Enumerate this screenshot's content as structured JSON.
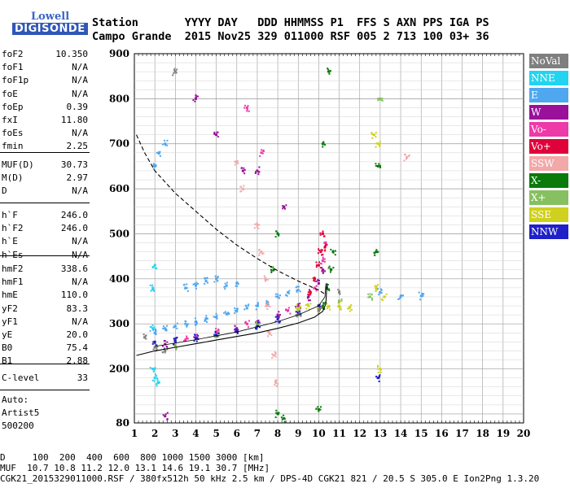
{
  "logo": {
    "line1": "Lowell",
    "line2": "DIGISONDE"
  },
  "header": {
    "row1": "Station       YYYY DAY   DDD HHMMSS P1  FFS S AXN PPS IGA PS",
    "row2": "Campo Grande  2015 Nov25 329 011000 RSF 005 2 713 100 03+ 36"
  },
  "params": {
    "group1": [
      {
        "k": "foF2",
        "v": "10.350"
      },
      {
        "k": "foF1",
        "v": "N/A"
      },
      {
        "k": "foF1p",
        "v": "N/A"
      },
      {
        "k": "foE",
        "v": "N/A"
      },
      {
        "k": "foEp",
        "v": "0.39"
      },
      {
        "k": "fxI",
        "v": "11.80"
      },
      {
        "k": "foEs",
        "v": "N/A"
      },
      {
        "k": "fmin",
        "v": "2.25"
      }
    ],
    "group2": [
      {
        "k": "MUF(D)",
        "v": "30.73"
      },
      {
        "k": "M(D)",
        "v": "2.97"
      },
      {
        "k": "D",
        "v": "N/A"
      }
    ],
    "group3": [
      {
        "k": "h`F",
        "v": "246.0"
      },
      {
        "k": "h`F2",
        "v": "246.0"
      },
      {
        "k": "h`E",
        "v": "N/A"
      },
      {
        "k": "h`Es",
        "v": "N/A"
      }
    ],
    "group4": [
      {
        "k": "hmF2",
        "v": "338.6"
      },
      {
        "k": "hmF1",
        "v": "N/A"
      },
      {
        "k": "hmE",
        "v": "110.0"
      },
      {
        "k": "yF2",
        "v": "83.3"
      },
      {
        "k": "yF1",
        "v": "N/A"
      },
      {
        "k": "yE",
        "v": "20.0"
      },
      {
        "k": "B0",
        "v": "75.4"
      },
      {
        "k": "B1",
        "v": "2.88"
      }
    ],
    "group5": [
      {
        "k": "C-level",
        "v": "33"
      }
    ],
    "auto": [
      "Auto:",
      "Artist5",
      "500200"
    ]
  },
  "legend": [
    {
      "label": "NoVal",
      "color": "#7f7f7f"
    },
    {
      "label": "NNE",
      "color": "#22d4f0"
    },
    {
      "label": "E",
      "color": "#4fa7f0"
    },
    {
      "label": "W",
      "color": "#9a109a"
    },
    {
      "label": "Vo-",
      "color": "#ee3aa8"
    },
    {
      "label": "Vo+",
      "color": "#e0003a"
    },
    {
      "label": "SSW",
      "color": "#f3a8a8"
    },
    {
      "label": "X-",
      "color": "#0a7a0a"
    },
    {
      "label": "X+",
      "color": "#86c060"
    },
    {
      "label": "SSE",
      "color": "#d0d020"
    },
    {
      "label": "NNW",
      "color": "#2020c8"
    }
  ],
  "footer": {
    "line1": "D     100  200  400  600  800 1000 1500 3000 [km]",
    "line2": "MUF  10.7 10.8 11.2 12.0 13.1 14.6 19.1 30.7 [MHz]",
    "line3": "CGK21_2015329011000.RSF / 380fx512h 50 kHz 2.5 km / DPS-4D CGK21 821 / 20.5 S 305.0 E Ion2Png 1.3.20"
  },
  "chart_data": {
    "type": "scatter",
    "xlim": [
      1,
      20
    ],
    "ylim": [
      80,
      900
    ],
    "x_ticks": [
      "1",
      "2",
      "3",
      "4",
      "5",
      "6",
      "7",
      "8",
      "9",
      "10",
      "11",
      "12",
      "13",
      "14",
      "15",
      "16",
      "17",
      "18",
      "19",
      "20"
    ],
    "y_ticks": [
      "80",
      "200",
      "300",
      "400",
      "500",
      "600",
      "700",
      "800",
      "900"
    ],
    "grid": true,
    "series": [
      {
        "name": "E",
        "color": "#4fa7f0",
        "points": [
          [
            2.0,
            280
          ],
          [
            2.5,
            290
          ],
          [
            3.0,
            295
          ],
          [
            3.5,
            300
          ],
          [
            4.0,
            305
          ],
          [
            4.5,
            312
          ],
          [
            5.0,
            315
          ],
          [
            5.5,
            322
          ],
          [
            6.0,
            328
          ],
          [
            6.5,
            335
          ],
          [
            7.0,
            340
          ],
          [
            7.5,
            348
          ],
          [
            8.0,
            360
          ],
          [
            8.5,
            370
          ],
          [
            9.0,
            375
          ],
          [
            2.0,
            650
          ],
          [
            2.2,
            680
          ],
          [
            2.5,
            700
          ],
          [
            3.5,
            380
          ],
          [
            4.0,
            385
          ],
          [
            4.5,
            395
          ],
          [
            5.0,
            400
          ],
          [
            5.5,
            385
          ],
          [
            6.0,
            390
          ],
          [
            13.0,
            370
          ],
          [
            14.0,
            360
          ],
          [
            15.0,
            362
          ]
        ]
      },
      {
        "name": "NNE",
        "color": "#22d4f0",
        "points": [
          [
            1.9,
            200
          ],
          [
            2.0,
            180
          ],
          [
            1.9,
            380
          ],
          [
            2.0,
            430
          ],
          [
            1.9,
            290
          ],
          [
            2.2,
            170
          ]
        ]
      },
      {
        "name": "W",
        "color": "#9a109a",
        "points": [
          [
            2.5,
            255
          ],
          [
            3.0,
            260
          ],
          [
            4.0,
            270
          ],
          [
            5.0,
            280
          ],
          [
            6.0,
            290
          ],
          [
            7.0,
            305
          ],
          [
            8.0,
            320
          ],
          [
            9.0,
            340
          ],
          [
            9.5,
            360
          ],
          [
            10.0,
            390
          ],
          [
            10.2,
            420
          ],
          [
            5.0,
            720
          ],
          [
            6.3,
            640
          ],
          [
            7.0,
            640
          ],
          [
            8.3,
            560
          ],
          [
            4.0,
            800
          ],
          [
            2.5,
            95
          ]
        ]
      },
      {
        "name": "Vo-",
        "color": "#ee3aa8",
        "points": [
          [
            3.5,
            265
          ],
          [
            5.0,
            283
          ],
          [
            6.5,
            300
          ],
          [
            8.5,
            330
          ],
          [
            9.8,
            380
          ],
          [
            10.2,
            440
          ],
          [
            10.3,
            480
          ],
          [
            7.2,
            680
          ],
          [
            6.5,
            780
          ]
        ]
      },
      {
        "name": "Vo+",
        "color": "#e0003a",
        "points": [
          [
            9.6,
            370
          ],
          [
            9.8,
            400
          ],
          [
            10.0,
            430
          ],
          [
            10.1,
            460
          ],
          [
            10.2,
            500
          ],
          [
            10.3,
            470
          ]
        ]
      },
      {
        "name": "SSW",
        "color": "#f3a8a8",
        "points": [
          [
            7.0,
            520
          ],
          [
            7.2,
            460
          ],
          [
            7.4,
            400
          ],
          [
            7.5,
            340
          ],
          [
            7.6,
            280
          ],
          [
            7.8,
            230
          ],
          [
            7.9,
            170
          ],
          [
            6.3,
            600
          ],
          [
            6.0,
            660
          ],
          [
            14.3,
            670
          ]
        ]
      },
      {
        "name": "X-",
        "color": "#0a7a0a",
        "points": [
          [
            10.2,
            340
          ],
          [
            10.4,
            380
          ],
          [
            10.6,
            420
          ],
          [
            10.7,
            460
          ],
          [
            8.0,
            100
          ],
          [
            8.3,
            90
          ],
          [
            10.0,
            110
          ],
          [
            10.2,
            700
          ],
          [
            10.5,
            860
          ],
          [
            12.8,
            460
          ],
          [
            12.9,
            650
          ],
          [
            8.0,
            500
          ],
          [
            7.8,
            420
          ]
        ]
      },
      {
        "name": "X+",
        "color": "#86c060",
        "points": [
          [
            3.0,
            250
          ],
          [
            5.0,
            275
          ],
          [
            7.0,
            300
          ],
          [
            9.0,
            330
          ],
          [
            11.0,
            350
          ],
          [
            12.5,
            360
          ],
          [
            13.0,
            800
          ]
        ]
      },
      {
        "name": "SSE",
        "color": "#d0d020",
        "points": [
          [
            9.0,
            335
          ],
          [
            9.5,
            340
          ],
          [
            10.0,
            335
          ],
          [
            10.5,
            338
          ],
          [
            11.0,
            340
          ],
          [
            11.5,
            335
          ],
          [
            12.8,
            380
          ],
          [
            12.9,
            700
          ],
          [
            12.7,
            720
          ],
          [
            13.0,
            200
          ],
          [
            13.2,
            360
          ]
        ]
      },
      {
        "name": "NNW",
        "color": "#2020c8",
        "points": [
          [
            2.0,
            260
          ],
          [
            3.0,
            262
          ],
          [
            4.0,
            268
          ],
          [
            5.0,
            275
          ],
          [
            6.0,
            285
          ],
          [
            7.0,
            295
          ],
          [
            8.0,
            310
          ],
          [
            9.0,
            325
          ],
          [
            10.0,
            340
          ],
          [
            12.9,
            180
          ]
        ]
      },
      {
        "name": "NoVal",
        "color": "#7f7f7f",
        "points": [
          [
            1.5,
            270
          ],
          [
            2.0,
            248
          ],
          [
            2.5,
            240
          ],
          [
            9.0,
            320
          ],
          [
            10.0,
            330
          ],
          [
            11.0,
            370
          ],
          [
            3.0,
            860
          ]
        ]
      }
    ],
    "curves": [
      {
        "style": "solid",
        "points": [
          [
            1.1,
            230
          ],
          [
            2.0,
            240
          ],
          [
            3.0,
            248
          ],
          [
            4.0,
            256
          ],
          [
            5.0,
            264
          ],
          [
            6.0,
            272
          ],
          [
            7.0,
            280
          ],
          [
            8.0,
            290
          ],
          [
            9.0,
            302
          ],
          [
            9.8,
            315
          ],
          [
            10.2,
            328
          ],
          [
            10.35,
            345
          ],
          [
            10.4,
            390
          ]
        ]
      },
      {
        "style": "dashed",
        "points": [
          [
            1.1,
            720
          ],
          [
            1.5,
            680
          ],
          [
            2.0,
            640
          ],
          [
            3.0,
            590
          ],
          [
            4.0,
            550
          ],
          [
            5.0,
            510
          ],
          [
            6.0,
            475
          ],
          [
            7.0,
            445
          ],
          [
            8.0,
            418
          ],
          [
            9.0,
            395
          ],
          [
            10.0,
            375
          ],
          [
            10.35,
            365
          ]
        ]
      },
      {
        "style": "solid-light",
        "points": [
          [
            2.0,
            250
          ],
          [
            4.0,
            265
          ],
          [
            6.0,
            282
          ],
          [
            8.0,
            305
          ],
          [
            9.0,
            320
          ],
          [
            9.5,
            330
          ],
          [
            10.0,
            340
          ],
          [
            10.3,
            360
          ],
          [
            10.35,
            390
          ]
        ]
      }
    ]
  }
}
